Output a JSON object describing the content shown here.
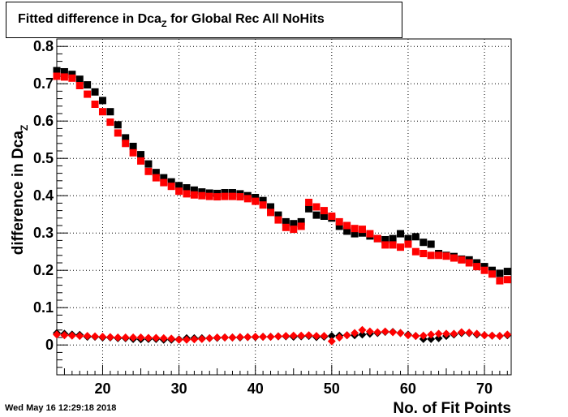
{
  "title": {
    "prefix": "Fitted difference in Dca",
    "subscript": "Z",
    "suffix": " for Global Rec All NoHits"
  },
  "timestamp": "Wed May 16 12:29:18 2018",
  "chart_data": {
    "type": "scatter",
    "xlabel": "No. of Fit Points",
    "ylabel": "difference in Dca",
    "ylabel_sub": "Z",
    "xlim": [
      14,
      73.5
    ],
    "ylim": [
      -0.08,
      0.82
    ],
    "x_ticks": [
      20,
      30,
      40,
      50,
      60,
      70
    ],
    "y_ticks": [
      0,
      0.1,
      0.2,
      0.3,
      0.4,
      0.5,
      0.6,
      0.7,
      0.8
    ],
    "x_tick_labels": [
      "20",
      "30",
      "40",
      "50",
      "60",
      "70"
    ],
    "y_tick_labels": [
      "0",
      "0.1",
      "0.2",
      "0.3",
      "0.4",
      "0.5",
      "0.6",
      "0.7",
      "0.8"
    ],
    "grid": true,
    "x": [
      14,
      15,
      16,
      17,
      18,
      19,
      20,
      21,
      22,
      23,
      24,
      25,
      26,
      27,
      28,
      29,
      30,
      31,
      32,
      33,
      34,
      35,
      36,
      37,
      38,
      39,
      40,
      41,
      42,
      43,
      44,
      45,
      46,
      47,
      48,
      49,
      50,
      51,
      52,
      53,
      54,
      55,
      56,
      57,
      58,
      59,
      60,
      61,
      62,
      63,
      64,
      65,
      66,
      67,
      68,
      69,
      70,
      71,
      72,
      73
    ],
    "series": [
      {
        "marker": "square",
        "color": "#000000",
        "values": [
          0.735,
          0.732,
          0.725,
          0.712,
          0.697,
          0.678,
          0.655,
          0.625,
          0.59,
          0.555,
          0.532,
          0.51,
          0.485,
          0.462,
          0.448,
          0.437,
          0.427,
          0.421,
          0.415,
          0.41,
          0.407,
          0.406,
          0.408,
          0.408,
          0.405,
          0.4,
          0.395,
          0.387,
          0.37,
          0.348,
          0.33,
          0.325,
          0.33,
          0.365,
          0.348,
          0.345,
          0.34,
          0.318,
          0.305,
          0.298,
          0.3,
          0.292,
          0.285,
          0.282,
          0.285,
          0.298,
          0.285,
          0.29,
          0.275,
          0.27,
          0.245,
          0.24,
          0.237,
          0.23,
          0.228,
          0.22,
          0.21,
          0.2,
          0.192,
          0.197
        ]
      },
      {
        "marker": "square",
        "color": "#ff0000",
        "values": [
          0.72,
          0.718,
          0.715,
          0.695,
          0.672,
          0.645,
          0.625,
          0.597,
          0.568,
          0.54,
          0.515,
          0.493,
          0.465,
          0.448,
          0.435,
          0.425,
          0.412,
          0.405,
          0.402,
          0.4,
          0.398,
          0.397,
          0.398,
          0.398,
          0.397,
          0.392,
          0.385,
          0.375,
          0.355,
          0.335,
          0.315,
          0.31,
          0.318,
          0.382,
          0.37,
          0.36,
          0.345,
          0.33,
          0.32,
          0.312,
          0.31,
          0.298,
          0.285,
          0.268,
          0.268,
          0.262,
          0.27,
          0.25,
          0.245,
          0.24,
          0.24,
          0.238,
          0.233,
          0.228,
          0.22,
          0.21,
          0.2,
          0.19,
          0.172,
          0.175
        ]
      },
      {
        "marker": "diamond",
        "color": "#000000",
        "values": [
          0.032,
          0.03,
          0.028,
          0.027,
          0.022,
          0.022,
          0.02,
          0.02,
          0.018,
          0.018,
          0.016,
          0.015,
          0.016,
          0.016,
          0.014,
          0.014,
          0.015,
          0.018,
          0.018,
          0.018,
          0.018,
          0.019,
          0.02,
          0.02,
          0.02,
          0.021,
          0.021,
          0.022,
          0.022,
          0.023,
          0.023,
          0.022,
          0.023,
          0.024,
          0.021,
          0.022,
          0.024,
          0.025,
          0.026,
          0.026,
          0.028,
          0.03,
          0.032,
          0.035,
          0.035,
          0.032,
          0.028,
          0.024,
          0.016,
          0.016,
          0.018,
          0.024,
          0.028,
          0.032,
          0.032,
          0.028,
          0.026,
          0.025,
          0.024,
          0.026
        ]
      },
      {
        "marker": "diamond",
        "color": "#ff0000",
        "values": [
          0.028,
          0.026,
          0.025,
          0.024,
          0.024,
          0.023,
          0.022,
          0.021,
          0.02,
          0.02,
          0.02,
          0.02,
          0.019,
          0.019,
          0.018,
          0.017,
          0.014,
          0.014,
          0.015,
          0.016,
          0.018,
          0.02,
          0.02,
          0.02,
          0.021,
          0.021,
          0.022,
          0.022,
          0.022,
          0.023,
          0.024,
          0.025,
          0.025,
          0.026,
          0.024,
          0.024,
          0.01,
          0.02,
          0.026,
          0.032,
          0.04,
          0.036,
          0.034,
          0.036,
          0.034,
          0.032,
          0.026,
          0.024,
          0.025,
          0.028,
          0.03,
          0.03,
          0.03,
          0.034,
          0.033,
          0.03,
          0.026,
          0.025,
          0.024,
          0.028
        ]
      }
    ]
  }
}
